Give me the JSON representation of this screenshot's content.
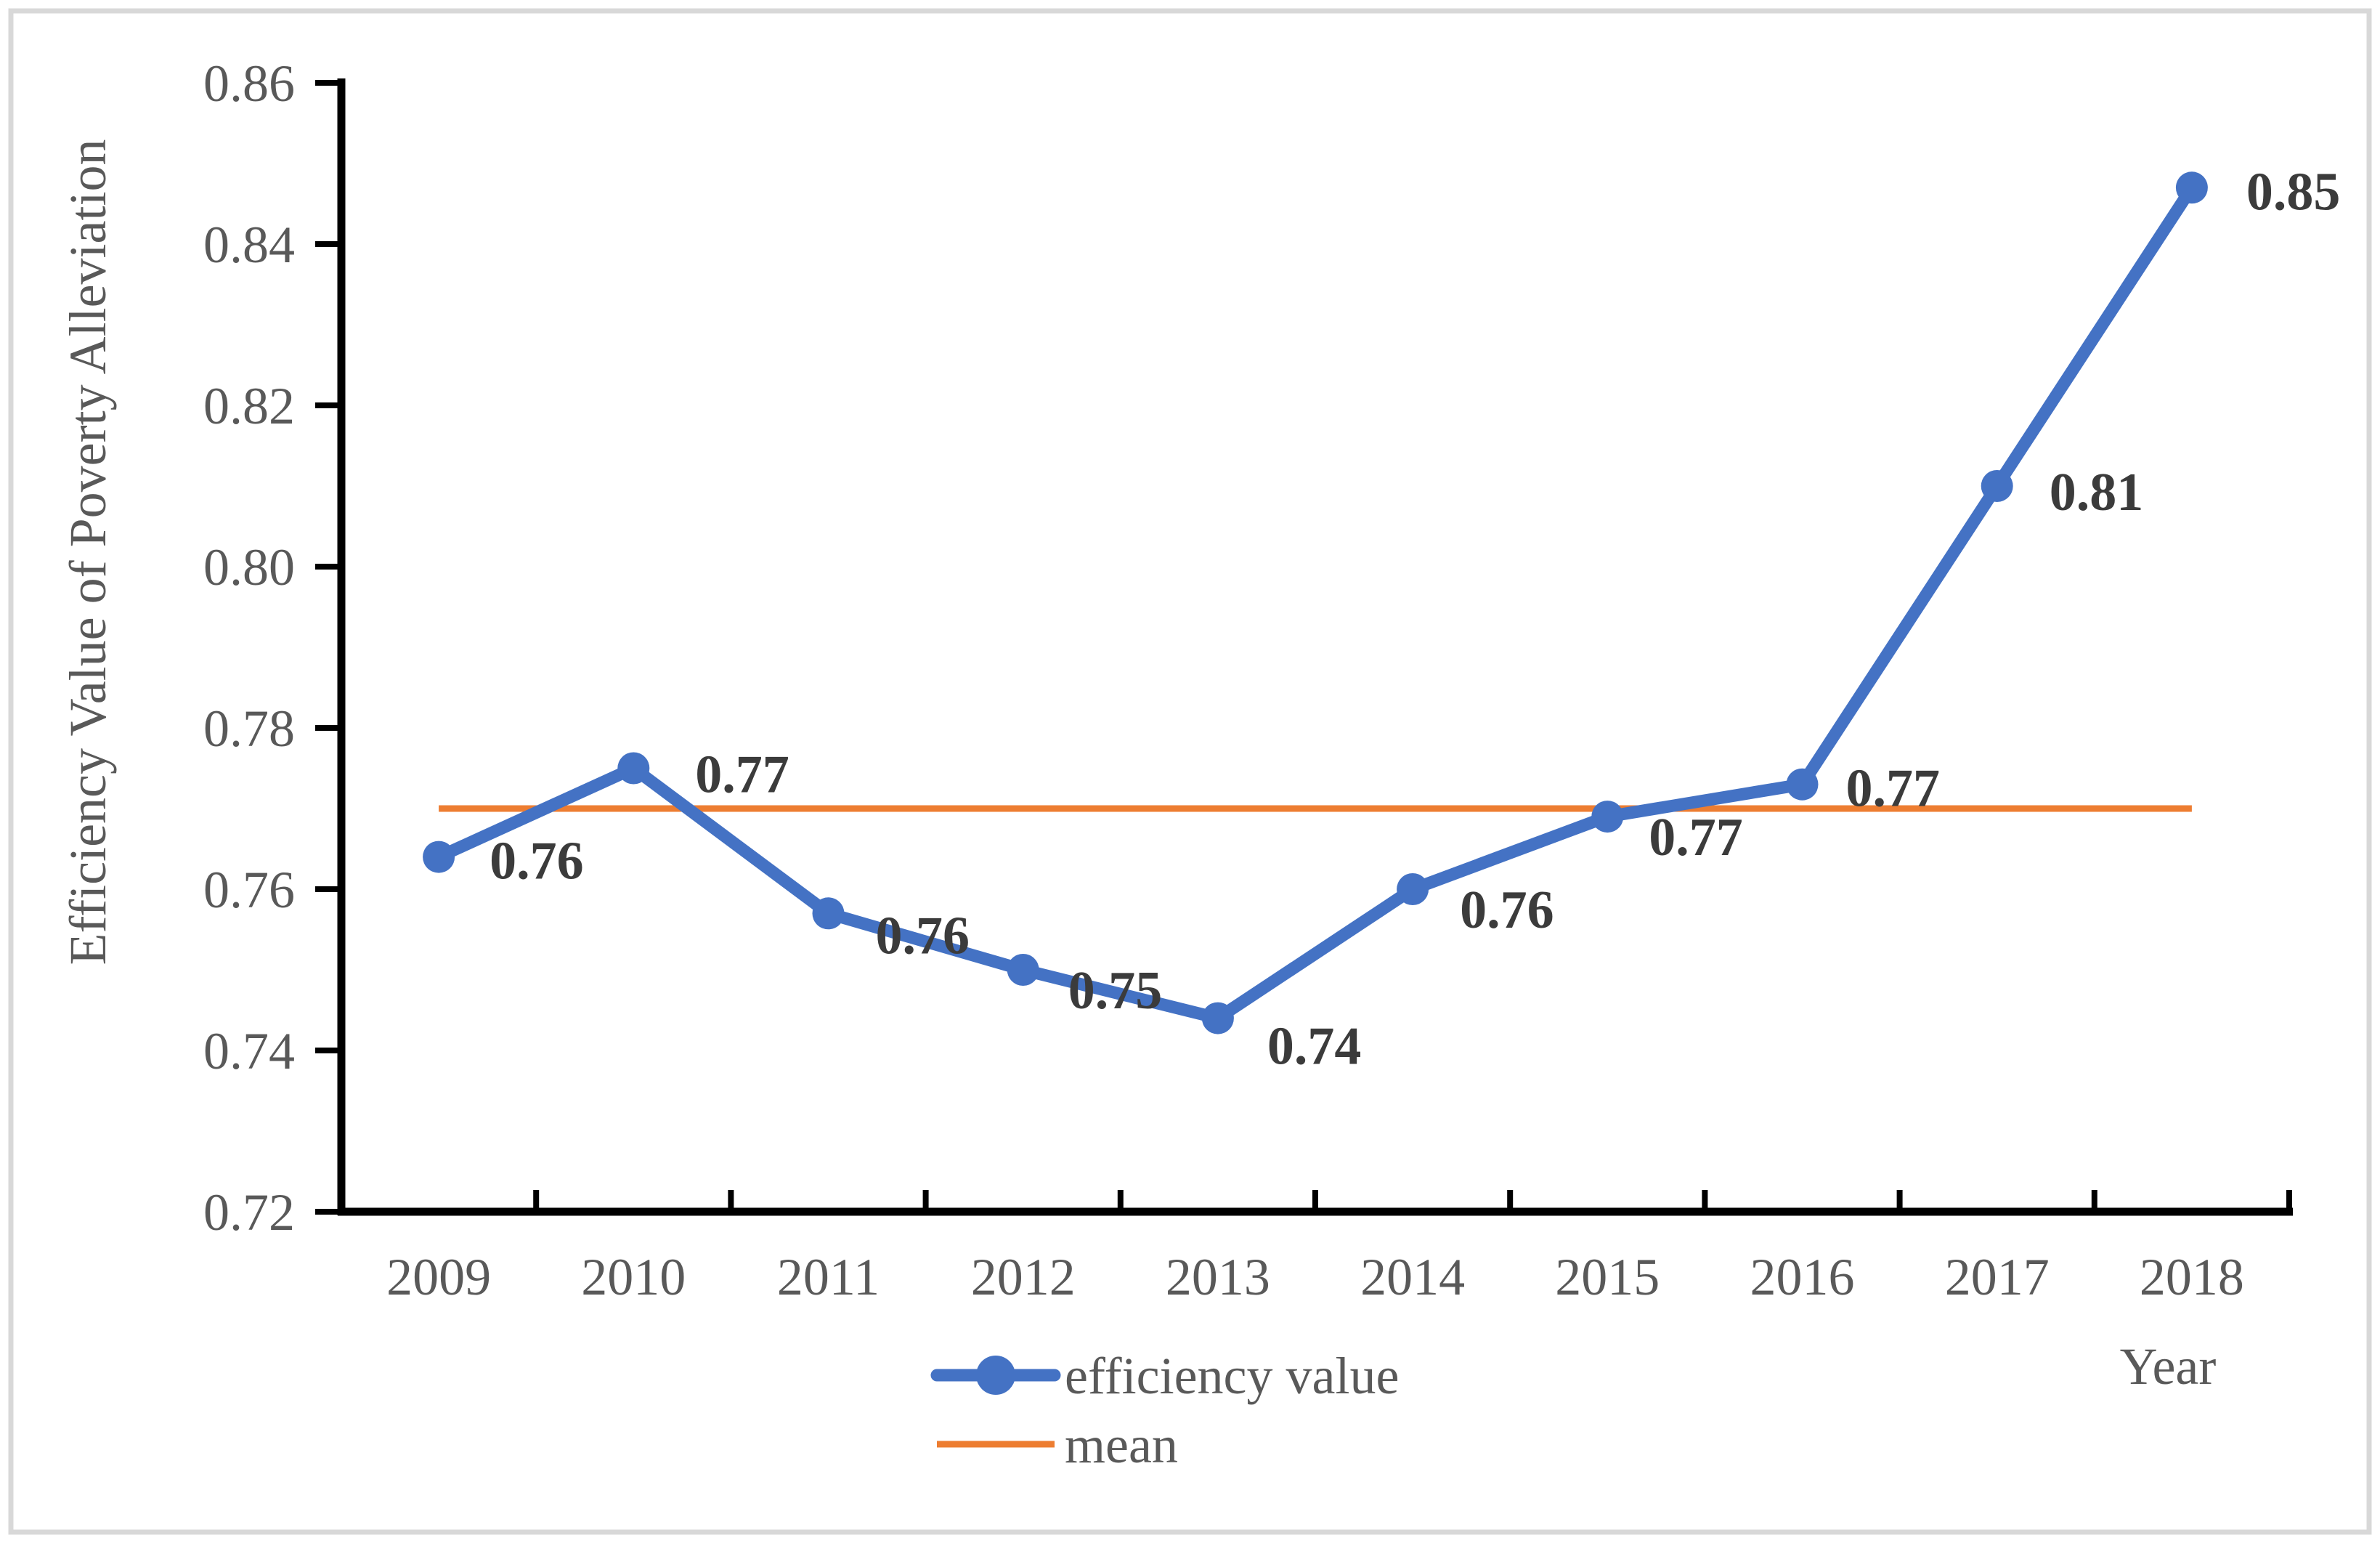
{
  "figure": {
    "background": "#FFFFFF",
    "border_color": "#D8D8D8"
  },
  "chart_data": {
    "type": "line",
    "title": "",
    "xlabel": "Year",
    "ylabel": "Efficiency Value of Poverty Alleviation",
    "categories": [
      "2009",
      "2010",
      "2011",
      "2012",
      "2013",
      "2014",
      "2015",
      "2016",
      "2017",
      "2018"
    ],
    "series": [
      {
        "name": "efficiency value",
        "color": "#4472C4",
        "marker": "circle",
        "values": [
          0.764,
          0.775,
          0.757,
          0.75,
          0.744,
          0.76,
          0.769,
          0.773,
          0.81,
          0.847
        ],
        "point_labels": [
          "0.76",
          "0.77",
          "0.76",
          "0.75",
          "0.74",
          "0.76",
          "0.77",
          "0.77",
          "0.81",
          "0.85"
        ]
      },
      {
        "name": "mean",
        "color": "#ED7D31",
        "marker": "none",
        "values": [
          0.77,
          0.77,
          0.77,
          0.77,
          0.77,
          0.77,
          0.77,
          0.77,
          0.77,
          0.77
        ],
        "point_labels": null
      }
    ],
    "ylim": [
      0.72,
      0.86
    ],
    "y_ticks": [
      "0.72",
      "0.74",
      "0.76",
      "0.78",
      "0.80",
      "0.82",
      "0.84",
      "0.86"
    ],
    "grid": false,
    "legend_position": "bottom-center",
    "axis_color": "#000000",
    "tick_label_color": "#595959",
    "data_label_color": "#3B3B3B"
  }
}
